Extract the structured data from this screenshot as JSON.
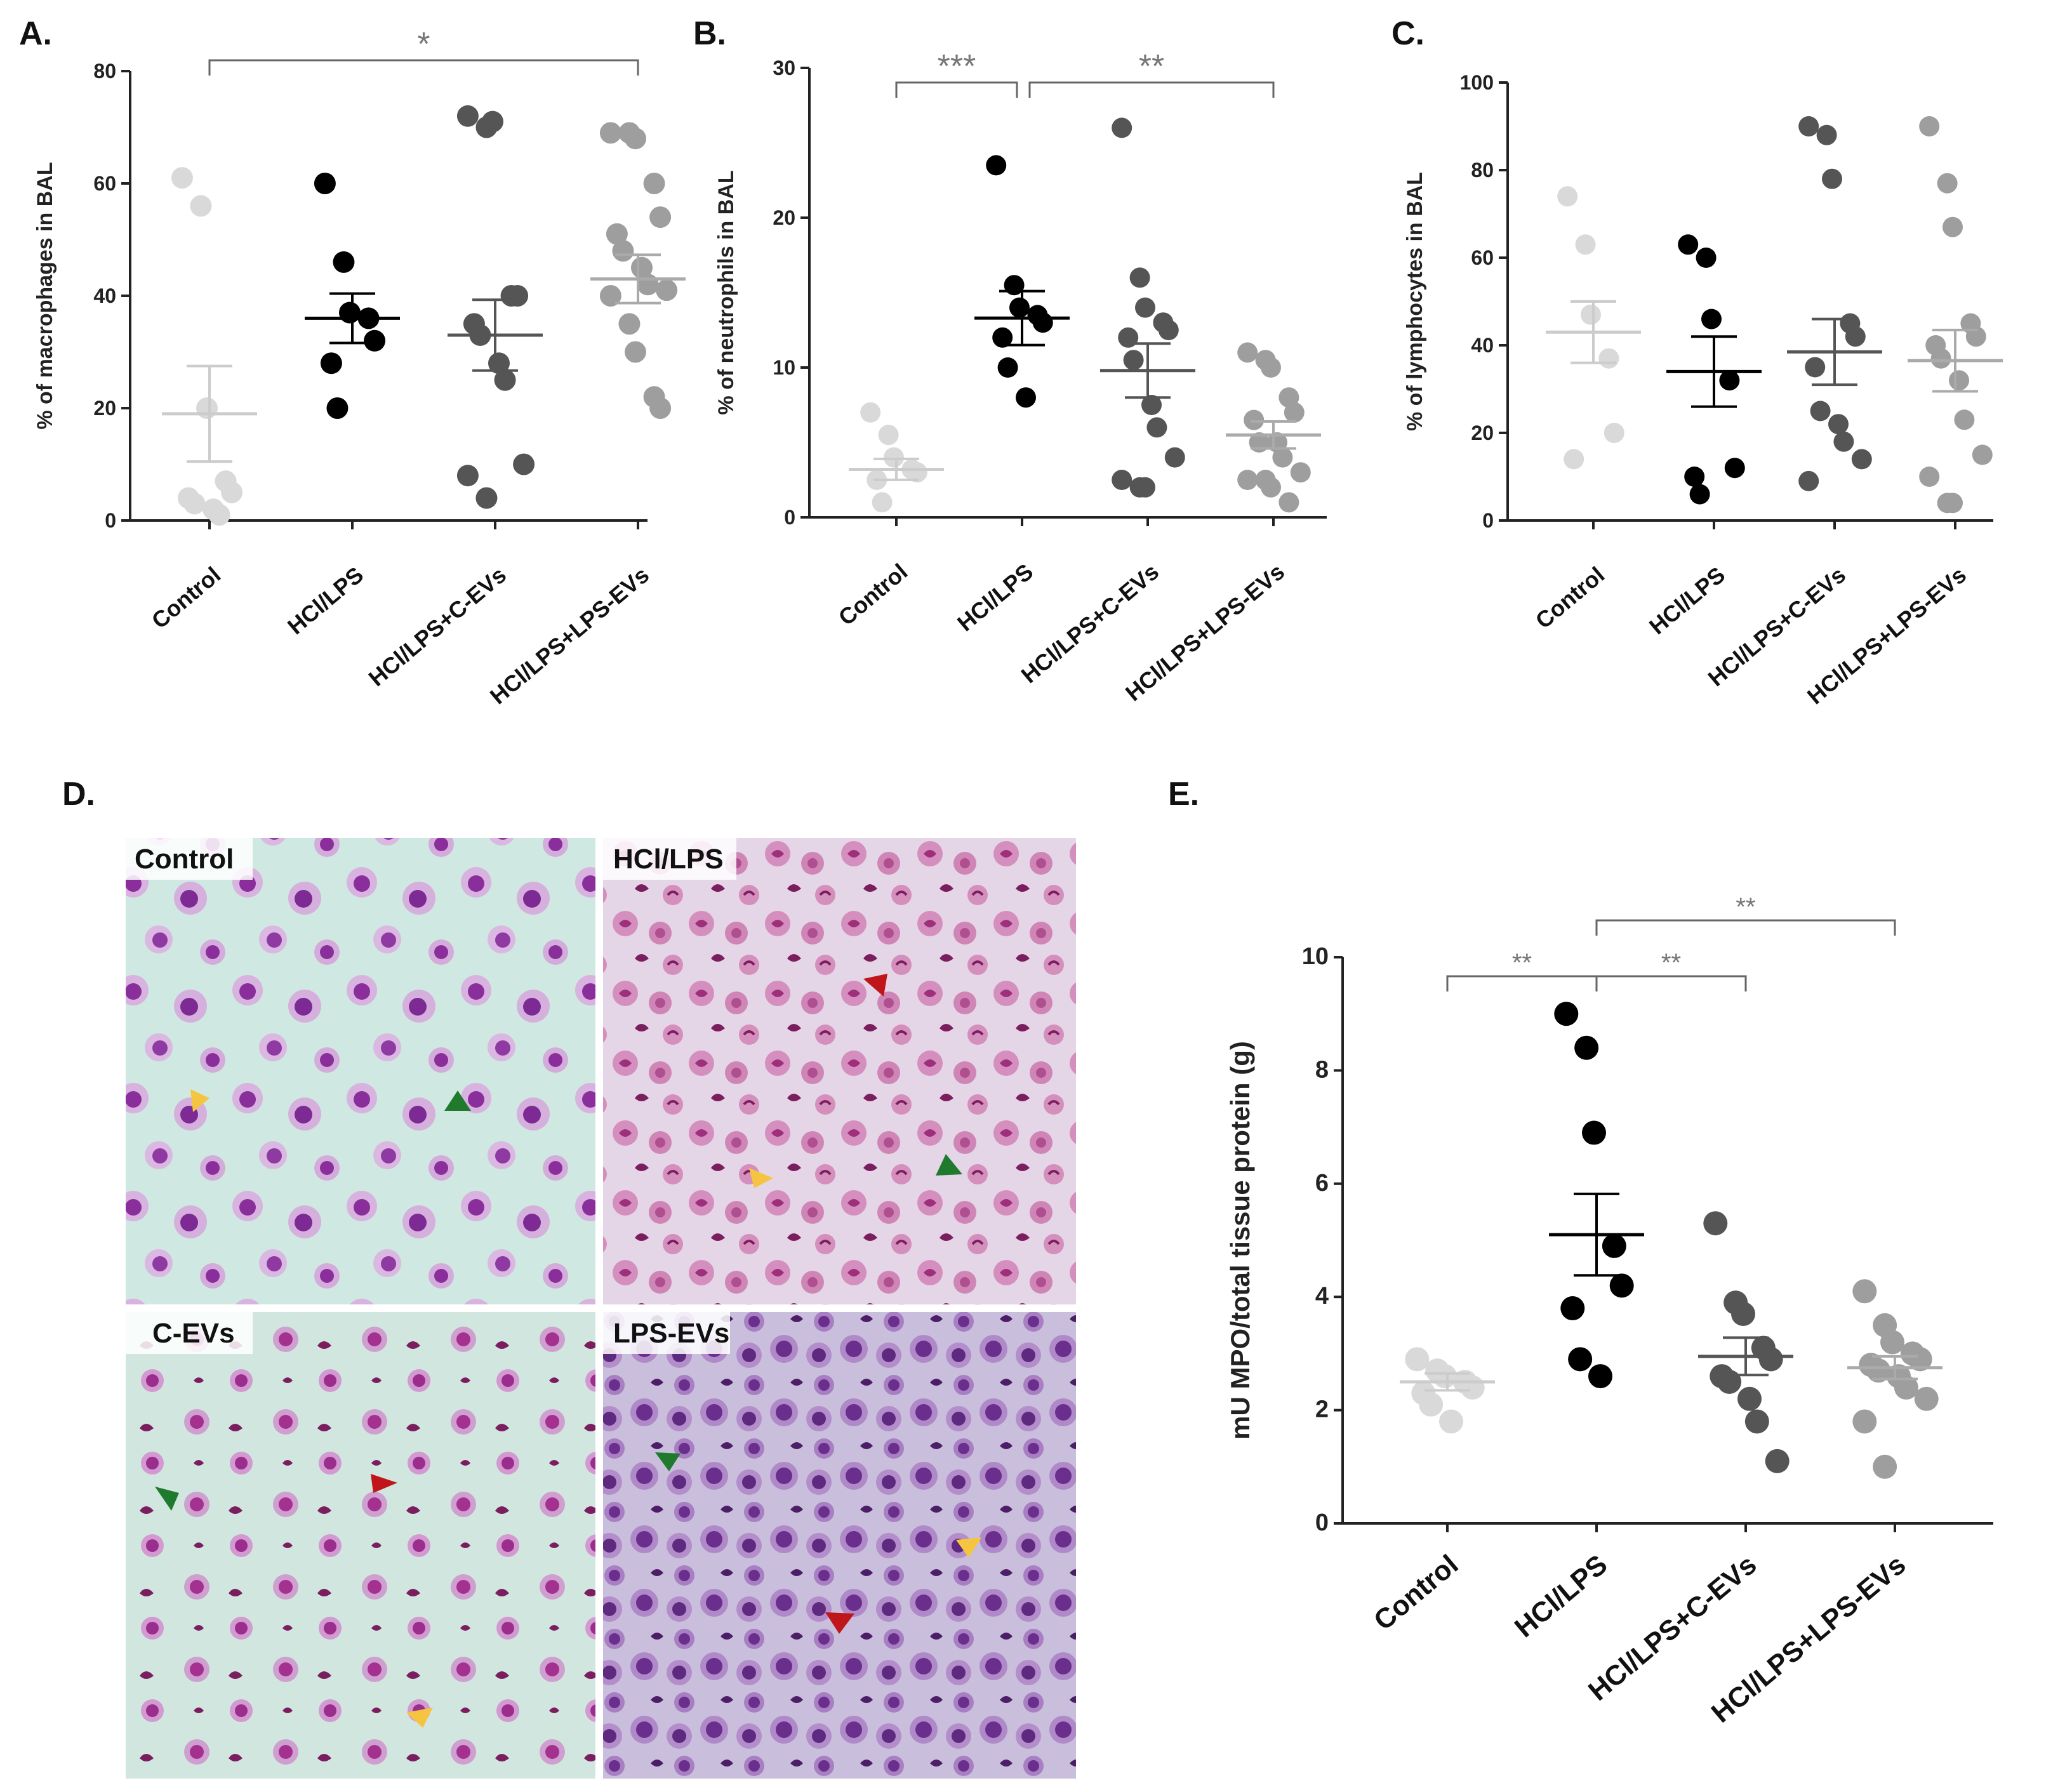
{
  "palette": {
    "Control": "#d9d9d9",
    "HCl/LPS": "#000000",
    "HCl/LPS+C-EVs": "#555555",
    "HCl/LPS+LPS-EVs": "#9e9e9e"
  },
  "panel_labels": {
    "A": "A.",
    "B": "B.",
    "C": "C.",
    "D": "D.",
    "E": "E."
  },
  "micrographs": {
    "labels": [
      "Control",
      "HCl/LPS",
      "C-EVs",
      "LPS-EVs"
    ],
    "arrow_colors": {
      "yellow": "#f5c542",
      "green": "#1f7a2e",
      "red": "#c0161b"
    }
  },
  "chart_data": [
    {
      "id": "A",
      "type": "scatter",
      "title": "",
      "xlabel": "",
      "ylabel": "% of macrophages in BAL",
      "categories": [
        "Control",
        "HCl/LPS",
        "HCl/LPS+C-EVs",
        "HCl/LPS+LPS-EVs"
      ],
      "ylim": [
        0,
        80
      ],
      "yticks": [
        "0",
        "20",
        "40",
        "60",
        "80"
      ],
      "points": [
        [
          61,
          56,
          20,
          7,
          5,
          4,
          3,
          2,
          1
        ],
        [
          60,
          46,
          37,
          36,
          32,
          28,
          20
        ],
        [
          72,
          70,
          71,
          40,
          40,
          35,
          33,
          28,
          25,
          10,
          8,
          4
        ],
        [
          69,
          69,
          68,
          60,
          54,
          51,
          48,
          45,
          42,
          41,
          40,
          35,
          30,
          22,
          20
        ]
      ],
      "mean": [
        19,
        36,
        33,
        43
      ],
      "sem": [
        8.5,
        4.4,
        6.3,
        4.3
      ],
      "significance": [
        {
          "from": 0,
          "to": 3,
          "label": "*"
        }
      ]
    },
    {
      "id": "B",
      "type": "scatter",
      "title": "",
      "xlabel": "",
      "ylabel": "% of neutrophils in BAL",
      "categories": [
        "Control",
        "HCl/LPS",
        "HCl/LPS+C-EVs",
        "HCl/LPS+LPS-EVs"
      ],
      "ylim": [
        0,
        30
      ],
      "yticks": [
        "0",
        "10",
        "20",
        "30"
      ],
      "points": [
        [
          7,
          5.5,
          4,
          3.2,
          3,
          2.5,
          1
        ],
        [
          23.5,
          15.5,
          14,
          13.5,
          13,
          12,
          10,
          8
        ],
        [
          26,
          16,
          14,
          13,
          12.5,
          12,
          10.5,
          7.5,
          6,
          4,
          2.5,
          2,
          2
        ],
        [
          11,
          10.5,
          10,
          8,
          7,
          6.5,
          5,
          5,
          4,
          3,
          2.5,
          2.5,
          2,
          1
        ]
      ],
      "mean": [
        3.2,
        13.3,
        9.8,
        5.5
      ],
      "sem": [
        0.7,
        1.8,
        1.8,
        0.9
      ],
      "significance": [
        {
          "from": 0,
          "to": 1,
          "label": "***"
        },
        {
          "from": 1,
          "to": 3,
          "label": "**"
        }
      ]
    },
    {
      "id": "C",
      "type": "scatter",
      "title": "",
      "xlabel": "",
      "ylabel": "% of lymphocytes in BAL",
      "categories": [
        "Control",
        "HCl/LPS",
        "HCl/LPS+C-EVs",
        "HCl/LPS+LPS-EVs"
      ],
      "ylim": [
        0,
        100
      ],
      "yticks": [
        "0",
        "20",
        "40",
        "60",
        "80",
        "100"
      ],
      "points": [
        [
          74,
          63,
          47,
          37,
          20,
          14
        ],
        [
          63,
          60,
          46,
          32,
          12,
          10,
          6
        ],
        [
          90,
          88,
          78,
          45,
          42,
          35,
          25,
          22,
          18,
          14,
          9
        ],
        [
          90,
          77,
          67,
          45,
          42,
          40,
          37,
          32,
          23,
          15,
          10,
          4,
          4
        ]
      ],
      "mean": [
        43,
        34,
        38.5,
        36.5
      ],
      "sem": [
        7,
        8,
        7.5,
        7
      ],
      "significance": []
    },
    {
      "id": "E",
      "type": "scatter",
      "title": "",
      "xlabel": "",
      "ylabel": "mU MPO/total tissue protein (g)",
      "categories": [
        "Control",
        "HCl/LPS",
        "HCl/LPS+C-EVs",
        "HCl/LPS+LPS-EVs"
      ],
      "ylim": [
        0,
        10
      ],
      "yticks": [
        "0",
        "2",
        "4",
        "6",
        "8",
        "10"
      ],
      "points": [
        [
          2.9,
          2.7,
          2.6,
          2.5,
          2.4,
          2.3,
          2.1,
          1.8
        ],
        [
          9.0,
          8.4,
          6.9,
          4.9,
          4.2,
          3.8,
          2.9,
          2.6
        ],
        [
          5.3,
          3.9,
          3.7,
          3.1,
          2.9,
          2.6,
          2.5,
          2.2,
          1.8,
          1.1
        ],
        [
          4.1,
          3.5,
          3.2,
          3.0,
          2.9,
          2.8,
          2.7,
          2.6,
          2.4,
          2.2,
          1.8,
          1.0
        ]
      ],
      "mean": [
        2.5,
        5.1,
        2.95,
        2.75
      ],
      "sem": [
        0.15,
        0.72,
        0.33,
        0.2
      ],
      "significance": [
        {
          "from": 0,
          "to": 1,
          "label": "**"
        },
        {
          "from": 1,
          "to": 2,
          "label": "**"
        },
        {
          "from": 1,
          "to": 3,
          "label": "**"
        }
      ]
    }
  ]
}
